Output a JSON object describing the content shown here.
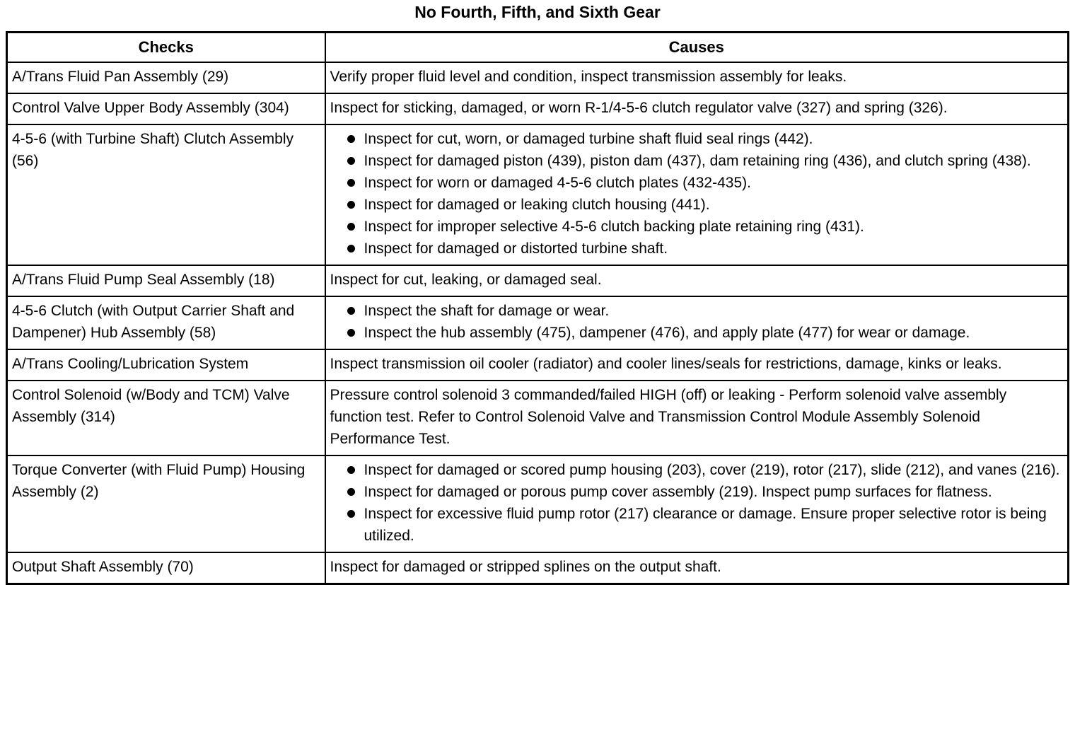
{
  "page": {
    "title": "No Fourth, Fifth, and Sixth Gear"
  },
  "table": {
    "headers": {
      "checks": "Checks",
      "causes": "Causes"
    },
    "rows": [
      {
        "check": "A/Trans Fluid Pan Assembly (29)",
        "cause_text": "Verify proper fluid level and condition, inspect transmission assembly for leaks."
      },
      {
        "check": "Control Valve Upper Body Assembly (304)",
        "cause_text": "Inspect for sticking, damaged, or worn R-1/4-5-6 clutch regulator valve (327) and spring (326)."
      },
      {
        "check": "4-5-6 (with Turbine Shaft) Clutch Assembly (56)",
        "cause_bullets": [
          "Inspect for cut, worn, or damaged turbine shaft fluid seal rings (442).",
          "Inspect for damaged piston (439), piston dam (437), dam retaining ring (436), and clutch spring (438).",
          "Inspect for worn or damaged 4-5-6 clutch plates (432-435).",
          "Inspect for damaged or leaking clutch housing (441).",
          "Inspect for improper selective 4-5-6 clutch backing plate retaining ring (431).",
          "Inspect for damaged or distorted turbine shaft."
        ]
      },
      {
        "check": "A/Trans Fluid Pump Seal Assembly (18)",
        "cause_text": "Inspect for cut, leaking, or damaged seal."
      },
      {
        "check": "4-5-6 Clutch (with Output Carrier Shaft and Dampener) Hub Assembly (58)",
        "cause_bullets": [
          "Inspect the shaft for damage or wear.",
          "Inspect the hub assembly (475), dampener (476), and apply plate (477) for wear or damage."
        ]
      },
      {
        "check": "A/Trans Cooling/Lubrication System",
        "cause_text": "Inspect transmission oil cooler (radiator) and cooler lines/seals for restrictions, damage, kinks or leaks."
      },
      {
        "check": "Control Solenoid (w/Body and TCM) Valve Assembly (314)",
        "cause_text": "Pressure control solenoid 3 commanded/failed HIGH (off) or leaking - Perform solenoid valve assembly function test. Refer to Control Solenoid Valve and Transmission Control Module Assembly Solenoid Performance Test."
      },
      {
        "check": "Torque Converter (with Fluid Pump) Housing Assembly (2)",
        "cause_bullets": [
          "Inspect for damaged or scored pump housing (203), cover (219), rotor (217), slide (212), and vanes (216).",
          "Inspect for damaged or porous pump cover assembly (219). Inspect pump surfaces for flatness.",
          "Inspect for excessive fluid pump rotor (217) clearance or damage. Ensure proper selective rotor is being utilized."
        ]
      },
      {
        "check": "Output Shaft Assembly (70)",
        "cause_text": "Inspect for damaged or stripped splines on the output shaft."
      }
    ]
  }
}
